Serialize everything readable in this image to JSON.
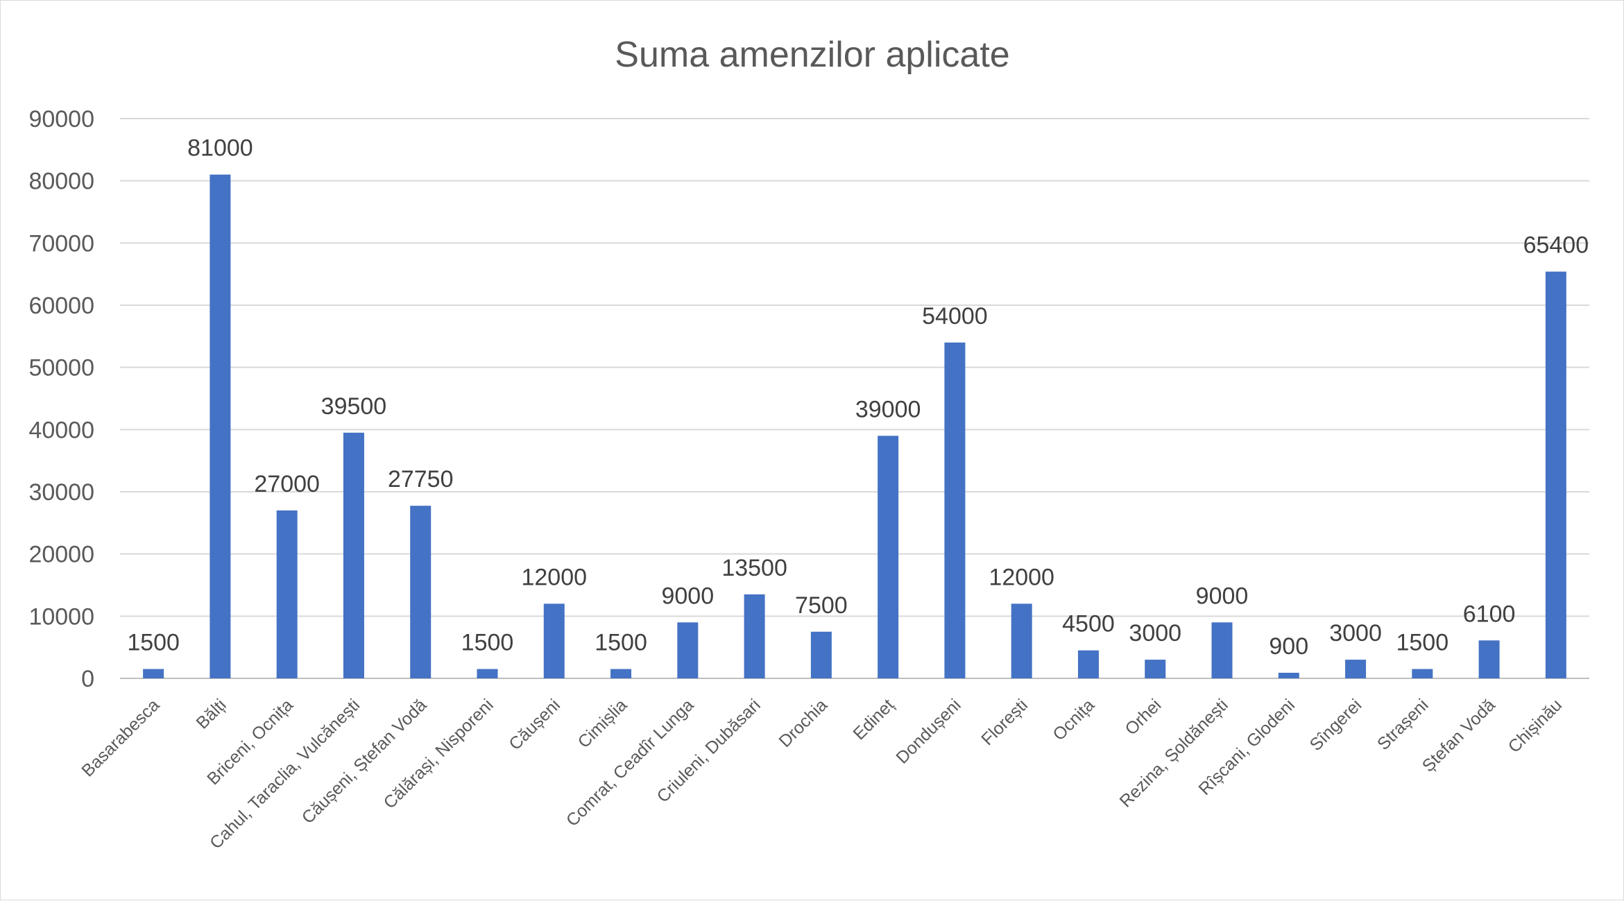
{
  "chart_data": {
    "type": "bar",
    "title": "Suma amenzilor aplicate",
    "xlabel": "",
    "ylabel": "",
    "ylim": [
      0,
      90000
    ],
    "yticks": [
      0,
      10000,
      20000,
      30000,
      40000,
      50000,
      60000,
      70000,
      80000,
      90000
    ],
    "grid": true,
    "legend": "none",
    "bar_color": "#4472C4",
    "categories": [
      "Basarabesca",
      "Bălți",
      "Briceni, Ocnița",
      "Cahul, Taraclia, Vulcănești",
      "Căușeni, Ștefan Vodă",
      "Călărași, Nisporeni",
      "Căușeni",
      "Cimișlia",
      "Comrat, Ceadîr Lunga",
      "Criuleni, Dubăsari",
      "Drochia",
      "Edineț",
      "Dondușeni",
      "Florești",
      "Ocnița",
      "Orhei",
      "Rezina, Șoldănești",
      "Rîșcani, Glodeni",
      "Sîngerei",
      "Strașeni",
      "Ștefan Vodă",
      "Chișinău"
    ],
    "values": [
      1500,
      81000,
      27000,
      39500,
      27750,
      1500,
      12000,
      1500,
      9000,
      13500,
      7500,
      39000,
      54000,
      12000,
      4500,
      3000,
      9000,
      900,
      3000,
      1500,
      6100,
      65400
    ]
  }
}
